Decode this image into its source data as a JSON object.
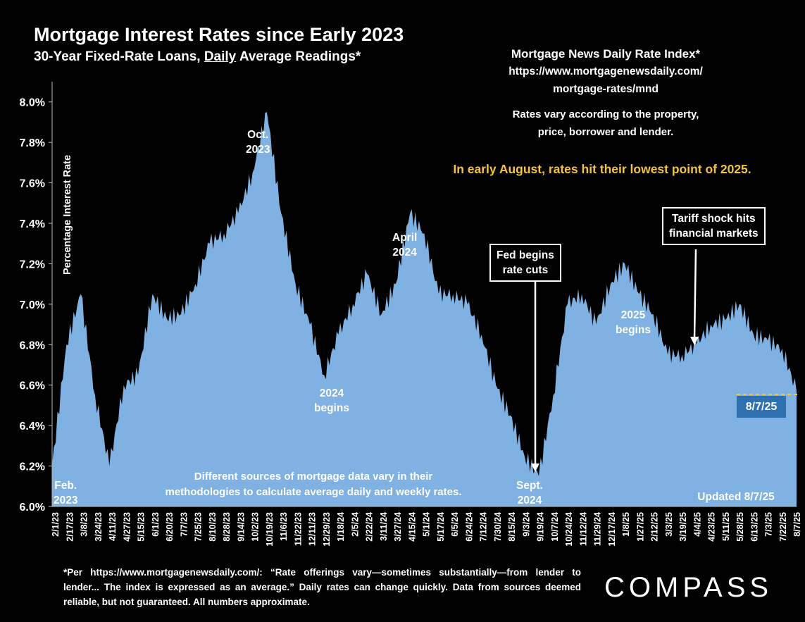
{
  "title": "Mortgage Interest Rates since Early 2023",
  "subtitle_pre": "30-Year Fixed-Rate Loans, ",
  "subtitle_underlined": "Daily",
  "subtitle_post": " Average Readings*",
  "source_title": "Mortgage News Daily Rate Index*",
  "source_url_line1": "https://www.mortgagenewsdaily.com/",
  "source_url_line2": "mortgage-rates/mnd",
  "vary_line1": "Rates vary according to the property,",
  "vary_line2": "price, borrower and lender.",
  "highlight_note": "In early August, rates hit their lowest point of 2025.",
  "method_line1": "Different sources of mortgage data vary in their",
  "method_line2": "methodologies to calculate average daily and weekly rates.",
  "updated": "Updated 8/7/25",
  "latest_badge": "8/7/25",
  "footnote": "*Per https://www.mortgagenewsdaily.com/: “Rate offerings vary—sometimes substantially—from lender to lender... The index is expressed as an average.” Daily rates can change quickly. Data from sources deemed reliable, but not guaranteed. All numbers approximate.",
  "logo": "COMPASS",
  "annotations": {
    "feb2023": [
      "Feb.",
      "2023"
    ],
    "oct2023": [
      "Oct.",
      "2023"
    ],
    "begins2024": [
      "2024",
      "begins"
    ],
    "april2024": [
      "April",
      "2024"
    ],
    "fed_cuts": [
      "Fed begins",
      "rate cuts"
    ],
    "sept2024": [
      "Sept.",
      "2024"
    ],
    "begins2025": [
      "2025",
      "begins"
    ],
    "tariff": [
      "Tariff shock hits",
      "financial markets"
    ]
  },
  "colors": {
    "background": "#000000",
    "fill": "#7fb2e2",
    "highlight": "#f5c242",
    "badge": "#2e6fb0"
  },
  "chart_data": {
    "type": "area",
    "ylabel": "Percentage Interest  Rate",
    "ylim": [
      6.0,
      8.1
    ],
    "y_ticks": [
      "6.0%",
      "6.2%",
      "6.4%",
      "6.6%",
      "6.8%",
      "7.0%",
      "7.2%",
      "7.4%",
      "7.6%",
      "7.8%",
      "8.0%"
    ],
    "x_ticks": [
      "2/1/23",
      "2/17/23",
      "3/8/23",
      "3/24/23",
      "4/11/23",
      "4/27/23",
      "5/15/23",
      "6/1/23",
      "6/20/23",
      "7/7/23",
      "7/25/23",
      "8/10/23",
      "8/28/23",
      "9/14/23",
      "10/2/23",
      "10/19/23",
      "11/6/23",
      "11/22/23",
      "12/11/23",
      "12/29/23",
      "1/18/24",
      "2/5/24",
      "2/22/24",
      "3/11/24",
      "3/27/24",
      "4/15/24",
      "5/1/24",
      "5/17/24",
      "6/5/24",
      "6/24/24",
      "7/12/24",
      "7/30/24",
      "8/15/24",
      "9/3/24",
      "9/19/24",
      "10/7/24",
      "10/24/24",
      "11/12/24",
      "11/29/24",
      "12/17/24",
      "1/8/25",
      "1/27/25",
      "2/12/25",
      "3/3/25",
      "3/19/25",
      "4/4/25",
      "4/23/25",
      "5/11/25",
      "5/28/25",
      "6/13/25",
      "7/3/25",
      "7/22/25",
      "8/7/25"
    ],
    "x": [
      "2/1/23",
      "2/17/23",
      "3/8/23",
      "3/24/23",
      "4/11/23",
      "4/27/23",
      "5/15/23",
      "6/1/23",
      "6/20/23",
      "7/7/23",
      "7/25/23",
      "8/10/23",
      "8/28/23",
      "9/14/23",
      "10/2/23",
      "10/19/23",
      "11/6/23",
      "11/22/23",
      "12/11/23",
      "12/29/23",
      "1/18/24",
      "2/5/24",
      "2/22/24",
      "3/11/24",
      "3/27/24",
      "4/15/24",
      "5/1/24",
      "5/17/24",
      "6/5/24",
      "6/24/24",
      "7/12/24",
      "7/30/24",
      "8/15/24",
      "9/3/24",
      "9/19/24",
      "10/7/24",
      "10/24/24",
      "11/12/24",
      "11/29/24",
      "12/17/24",
      "1/8/25",
      "1/27/25",
      "2/12/25",
      "3/3/25",
      "3/19/25",
      "4/4/25",
      "4/23/25",
      "5/11/25",
      "5/28/25",
      "6/13/25",
      "7/3/25",
      "7/22/25",
      "8/7/25"
    ],
    "values": [
      6.2,
      6.8,
      7.05,
      6.55,
      6.2,
      6.6,
      6.65,
      7.05,
      6.93,
      6.95,
      7.1,
      7.3,
      7.35,
      7.45,
      7.65,
      7.95,
      7.45,
      7.1,
      6.9,
      6.65,
      6.85,
      7.0,
      7.15,
      6.95,
      7.1,
      7.45,
      7.35,
      7.05,
      7.05,
      7.0,
      6.85,
      6.6,
      6.45,
      6.25,
      6.15,
      6.55,
      7.0,
      7.05,
      6.9,
      7.1,
      7.2,
      7.05,
      6.95,
      6.75,
      6.75,
      6.8,
      6.9,
      6.92,
      7.0,
      6.85,
      6.82,
      6.78,
      6.57
    ],
    "grid": false,
    "legend": "none"
  }
}
